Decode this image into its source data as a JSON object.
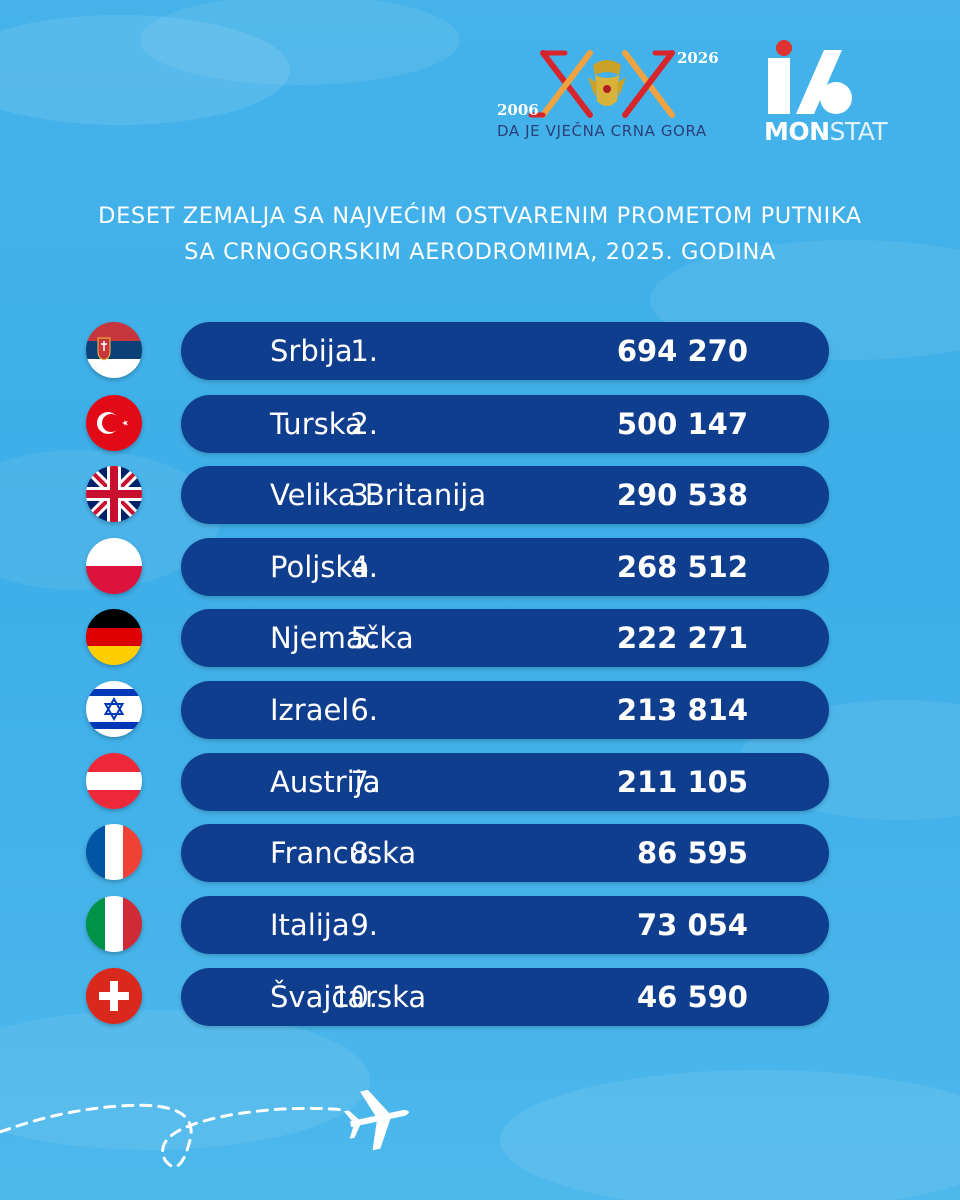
{
  "logo_anniversary": {
    "year_start": "2006",
    "year_end": "2026",
    "slogan": "DA JE VJEČNA CRNA GORA",
    "colors": {
      "x_red": "#d8242b",
      "x_orange": "#f2a341",
      "slogan": "#2b3f78"
    }
  },
  "logo_monstat": {
    "word_part1": "MON",
    "word_part2": "STAT",
    "colors": {
      "red": "#e03131",
      "white": "#ffffff"
    }
  },
  "heading": {
    "line1": "DESET ZEMALJA SA NAJVEĆIM OSTVARENIM PROMETOM PUTNIKA",
    "line2": "SA CRNOGORSKIM AERODROMIMA, 2025. GODINA"
  },
  "colors": {
    "pill": "#103e8f",
    "background": "#3daee8"
  },
  "countries": [
    {
      "rank": "1.",
      "name": "Srbija",
      "value": "694 270",
      "flag": "serbia-flag-icon"
    },
    {
      "rank": "2.",
      "name": "Turska",
      "value": "500 147",
      "flag": "turkey-flag-icon"
    },
    {
      "rank": "3.",
      "name": "Velika Britanija",
      "value": "290 538",
      "flag": "uk-flag-icon"
    },
    {
      "rank": "4.",
      "name": "Poljska",
      "value": "268 512",
      "flag": "poland-flag-icon"
    },
    {
      "rank": "5.",
      "name": "Njemačka",
      "value": "222 271",
      "flag": "germany-flag-icon"
    },
    {
      "rank": "6.",
      "name": "Izrael",
      "value": "213 814",
      "flag": "israel-flag-icon"
    },
    {
      "rank": "7.",
      "name": "Austrija",
      "value": "211 105",
      "flag": "austria-flag-icon"
    },
    {
      "rank": "8.",
      "name": "Francuska",
      "value": "86 595",
      "flag": "france-flag-icon"
    },
    {
      "rank": "9.",
      "name": "Italija",
      "value": "73 054",
      "flag": "italy-flag-icon"
    },
    {
      "rank": "10.",
      "name": "Švajcarska",
      "value": "46 590",
      "flag": "switzerland-flag-icon"
    }
  ],
  "decoration": {
    "icon": "airplane-icon"
  }
}
